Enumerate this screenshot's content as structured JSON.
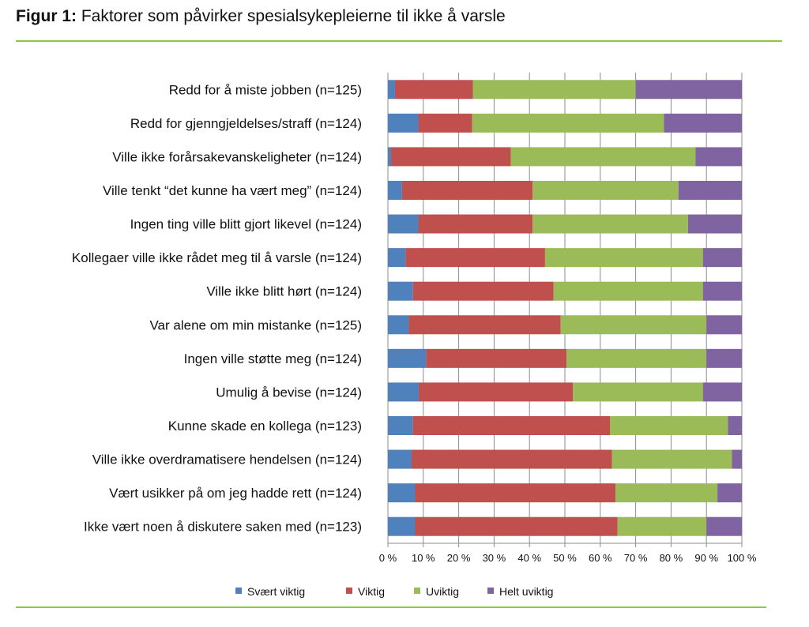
{
  "title": {
    "prefix": "Figur 1:",
    "text": "Faktorer som påvirker spesialsykepleierne til ikke å varsle"
  },
  "chart_data": {
    "type": "bar",
    "orientation": "horizontal",
    "stacked": "percent",
    "xlim": [
      0,
      100
    ],
    "x_ticks": [
      "0 %",
      "10 %",
      "20 %",
      "30 %",
      "40 %",
      "50 %",
      "60 %",
      "70 %",
      "80 %",
      "90 %",
      "100 %"
    ],
    "grid": "vertical",
    "legend_position": "bottom",
    "categories": [
      "Redd for å miste jobben (n=125)",
      "Redd for gjenngjeldelses/straff (n=124)",
      "Ville ikke forårsakevanskeligheter (n=124)",
      "Ville tenkt “det kunne ha vært meg” (n=124)",
      "Ingen ting ville blitt gjort likevel (n=124)",
      "Kollegaer ville ikke rådet meg til å varsle (n=124)",
      "Ville ikke blitt hørt (n=124)",
      "Var alene om min mistanke (n=125)",
      "Ingen ville støtte meg (n=124)",
      "Umulig å bevise (n=124)",
      "Kunne skade en kollega (n=123)",
      "Ville ikke overdramatisere hendelsen (n=124)",
      "Vært usikker på om jeg hadde rett (n=124)",
      "Ikke vært noen å diskutere saken med (n=123)"
    ],
    "series": [
      {
        "name": "Svært viktig",
        "color": "#4f81bd",
        "values": [
          2,
          8.6,
          0.9,
          4,
          8.6,
          5,
          7.1,
          5.9,
          10.8,
          8.7,
          7.1,
          6.7,
          7.7,
          7.7
        ]
      },
      {
        "name": "Viktig",
        "color": "#c0504d",
        "values": [
          22,
          15.2,
          33.8,
          36.9,
          32.3,
          39.4,
          39.7,
          42.9,
          39.7,
          43.6,
          55.7,
          56.6,
          56.6,
          57.2
        ]
      },
      {
        "name": "Uviktig",
        "color": "#9bbb59",
        "values": [
          46,
          54.2,
          52.2,
          41.2,
          43.9,
          44.6,
          42.2,
          41.2,
          39.5,
          36.7,
          33.3,
          33.9,
          28.8,
          25.1
        ]
      },
      {
        "name": "Helt uviktig",
        "color": "#8064a2",
        "values": [
          30,
          22,
          13.1,
          17.9,
          15.2,
          11,
          11,
          10,
          10,
          11,
          3.9,
          2.8,
          6.9,
          10
        ]
      }
    ]
  }
}
